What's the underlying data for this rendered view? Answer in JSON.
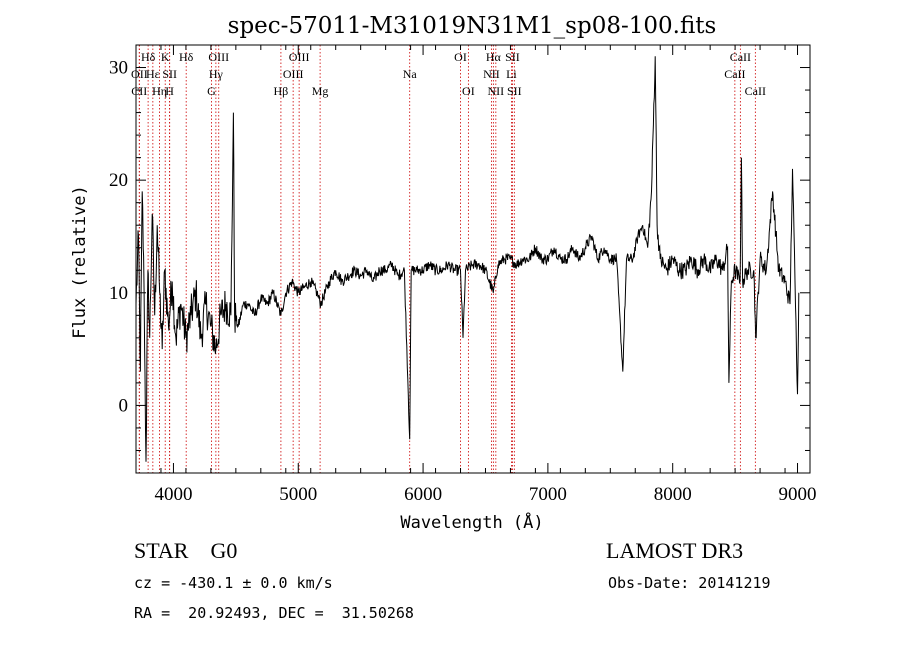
{
  "chart_data": {
    "type": "line",
    "title": "spec-57011-M31019N31M1_sp08-100.fits",
    "xlabel": "Wavelength (Å)",
    "ylabel": "Flux (relative)",
    "xlim": [
      3700,
      9100
    ],
    "ylim": [
      -6,
      32
    ],
    "x_ticks": [
      4000,
      5000,
      6000,
      7000,
      8000,
      9000
    ],
    "y_ticks": [
      0,
      10,
      20,
      30
    ],
    "spectrum_control_points": [
      [
        3700,
        9
      ],
      [
        3720,
        15
      ],
      [
        3735,
        3
      ],
      [
        3750,
        19
      ],
      [
        3765,
        10
      ],
      [
        3780,
        -5
      ],
      [
        3795,
        12
      ],
      [
        3810,
        6
      ],
      [
        3830,
        17
      ],
      [
        3850,
        8
      ],
      [
        3870,
        16
      ],
      [
        3890,
        10
      ],
      [
        3910,
        5
      ],
      [
        3930,
        12
      ],
      [
        3960,
        7
      ],
      [
        3990,
        11
      ],
      [
        4020,
        6
      ],
      [
        4060,
        9
      ],
      [
        4100,
        6
      ],
      [
        4140,
        8
      ],
      [
        4180,
        10
      ],
      [
        4220,
        6
      ],
      [
        4260,
        9
      ],
      [
        4300,
        7
      ],
      [
        4340,
        5
      ],
      [
        4380,
        8
      ],
      [
        4420,
        9
      ],
      [
        4460,
        8
      ],
      [
        4480,
        26
      ],
      [
        4490,
        8
      ],
      [
        4520,
        7
      ],
      [
        4560,
        9
      ],
      [
        4600,
        9
      ],
      [
        4650,
        8
      ],
      [
        4700,
        9.5
      ],
      [
        4750,
        9
      ],
      [
        4800,
        10
      ],
      [
        4861,
        8
      ],
      [
        4900,
        10
      ],
      [
        4950,
        11
      ],
      [
        5000,
        10
      ],
      [
        5050,
        10.5
      ],
      [
        5100,
        11
      ],
      [
        5150,
        10
      ],
      [
        5180,
        9
      ],
      [
        5250,
        11
      ],
      [
        5300,
        12
      ],
      [
        5350,
        11
      ],
      [
        5400,
        11.5
      ],
      [
        5450,
        12
      ],
      [
        5500,
        11.5
      ],
      [
        5550,
        12
      ],
      [
        5600,
        11
      ],
      [
        5650,
        12
      ],
      [
        5700,
        12
      ],
      [
        5750,
        12.5
      ],
      [
        5800,
        11.5
      ],
      [
        5850,
        12
      ],
      [
        5893,
        -3
      ],
      [
        5905,
        12
      ],
      [
        5950,
        12
      ],
      [
        6000,
        12
      ],
      [
        6050,
        12.5
      ],
      [
        6100,
        12
      ],
      [
        6150,
        12
      ],
      [
        6200,
        12.5
      ],
      [
        6250,
        12
      ],
      [
        6300,
        12
      ],
      [
        6320,
        6
      ],
      [
        6340,
        12
      ],
      [
        6400,
        12.5
      ],
      [
        6450,
        12.5
      ],
      [
        6500,
        12
      ],
      [
        6563,
        10
      ],
      [
        6600,
        12.5
      ],
      [
        6650,
        13
      ],
      [
        6700,
        13
      ],
      [
        6750,
        12.5
      ],
      [
        6800,
        13
      ],
      [
        6850,
        13
      ],
      [
        6900,
        14
      ],
      [
        6950,
        13
      ],
      [
        7000,
        13
      ],
      [
        7050,
        14
      ],
      [
        7100,
        13
      ],
      [
        7150,
        13
      ],
      [
        7200,
        14
      ],
      [
        7250,
        13
      ],
      [
        7300,
        14
      ],
      [
        7350,
        15
      ],
      [
        7400,
        13
      ],
      [
        7450,
        14
      ],
      [
        7500,
        13
      ],
      [
        7550,
        13
      ],
      [
        7600,
        3
      ],
      [
        7630,
        13
      ],
      [
        7680,
        13
      ],
      [
        7720,
        15
      ],
      [
        7760,
        16
      ],
      [
        7800,
        14
      ],
      [
        7830,
        19
      ],
      [
        7860,
        31
      ],
      [
        7875,
        16
      ],
      [
        7900,
        13
      ],
      [
        7950,
        12
      ],
      [
        8000,
        13
      ],
      [
        8050,
        12
      ],
      [
        8100,
        12
      ],
      [
        8150,
        13
      ],
      [
        8200,
        12
      ],
      [
        8250,
        13
      ],
      [
        8300,
        12
      ],
      [
        8350,
        13
      ],
      [
        8400,
        12
      ],
      [
        8440,
        14
      ],
      [
        8450,
        2
      ],
      [
        8470,
        11
      ],
      [
        8500,
        12
      ],
      [
        8540,
        11
      ],
      [
        8550,
        22
      ],
      [
        8560,
        11
      ],
      [
        8600,
        12
      ],
      [
        8650,
        12
      ],
      [
        8665,
        6
      ],
      [
        8700,
        13
      ],
      [
        8750,
        12
      ],
      [
        8800,
        19
      ],
      [
        8850,
        12
      ],
      [
        8900,
        11
      ],
      [
        8940,
        9
      ],
      [
        8960,
        21
      ],
      [
        8980,
        11
      ],
      [
        9000,
        1
      ],
      [
        9010,
        10
      ]
    ],
    "spectral_lines": [
      {
        "label": "Hδ",
        "wavelength": 3797,
        "row": 0
      },
      {
        "label": "OII",
        "wavelength": 3727,
        "row": 1
      },
      {
        "label": "CII",
        "wavelength": 3726,
        "row": 2
      },
      {
        "label": "Hε",
        "wavelength": 3835,
        "row": 1
      },
      {
        "label": "Hη",
        "wavelength": 3889,
        "row": 2
      },
      {
        "label": "K",
        "wavelength": 3934,
        "row": 0
      },
      {
        "label": "SII",
        "wavelength": 3970,
        "row": 1
      },
      {
        "label": "H",
        "wavelength": 3969,
        "row": 2
      },
      {
        "label": "Hδ",
        "wavelength": 4102,
        "row": 0
      },
      {
        "label": "OIII",
        "wavelength": 4363,
        "row": 0
      },
      {
        "label": "Hγ",
        "wavelength": 4340,
        "row": 1
      },
      {
        "label": "G",
        "wavelength": 4305,
        "row": 2
      },
      {
        "label": "Hβ",
        "wavelength": 4861,
        "row": 2
      },
      {
        "label": "OIII",
        "wavelength": 5007,
        "row": 0
      },
      {
        "label": "OIII",
        "wavelength": 4959,
        "row": 1
      },
      {
        "label": "Mg",
        "wavelength": 5175,
        "row": 2
      },
      {
        "label": "Na",
        "wavelength": 5893,
        "row": 1
      },
      {
        "label": "OI",
        "wavelength": 6300,
        "row": 0
      },
      {
        "label": "OI",
        "wavelength": 6363,
        "row": 2
      },
      {
        "label": "Hα",
        "wavelength": 6563,
        "row": 0
      },
      {
        "label": "SII",
        "wavelength": 6716,
        "row": 0
      },
      {
        "label": "NII",
        "wavelength": 6548,
        "row": 1
      },
      {
        "label": "Li",
        "wavelength": 6708,
        "row": 1
      },
      {
        "label": "NII",
        "wavelength": 6583,
        "row": 2
      },
      {
        "label": "SII",
        "wavelength": 6731,
        "row": 2
      },
      {
        "label": "CaII",
        "wavelength": 8542,
        "row": 0
      },
      {
        "label": "CaII",
        "wavelength": 8498,
        "row": 1
      },
      {
        "label": "CaII",
        "wavelength": 8662,
        "row": 2
      }
    ],
    "line_color": "#000000",
    "marker_color": "#cc0000"
  },
  "info": {
    "classification": "STAR    G0",
    "survey": "LAMOST DR3",
    "cz": "cz = -430.1 ± 0.0 km/s",
    "obs_date": "Obs-Date: 20141219",
    "coords": "RA =  20.92493, DEC =  31.50268"
  }
}
